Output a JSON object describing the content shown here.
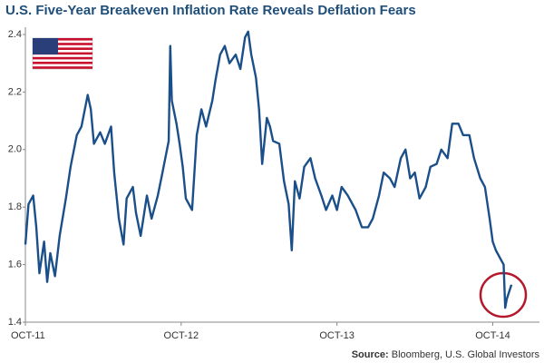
{
  "chart_data": {
    "type": "line",
    "title": "U.S. Five-Year Breakeven Inflation Rate Reveals Deflation Fears",
    "source_label": "Source:",
    "source": "Bloomberg, U.S. Global Investors",
    "x": [
      2011.75,
      2011.77,
      2011.8,
      2011.82,
      2011.84,
      2011.87,
      2011.89,
      2011.91,
      2011.94,
      2011.97,
      2012.01,
      2012.04,
      2012.08,
      2012.11,
      2012.15,
      2012.17,
      2012.19,
      2012.23,
      2012.26,
      2012.3,
      2012.32,
      2012.35,
      2012.38,
      2012.4,
      2012.44,
      2012.46,
      2012.49,
      2012.53,
      2012.56,
      2012.6,
      2012.63,
      2012.67,
      2012.68,
      2012.69,
      2012.72,
      2012.74,
      2012.76,
      2012.78,
      2012.82,
      2012.85,
      2012.88,
      2012.91,
      2012.95,
      2012.97,
      2013.0,
      2013.03,
      2013.06,
      2013.1,
      2013.13,
      2013.16,
      2013.18,
      2013.2,
      2013.23,
      2013.25,
      2013.27,
      2013.3,
      2013.32,
      2013.34,
      2013.38,
      2013.41,
      2013.44,
      2013.46,
      2013.48,
      2013.51,
      2013.54,
      2013.58,
      2013.61,
      2013.65,
      2013.68,
      2013.72,
      2013.75,
      2013.78,
      2013.82,
      2013.87,
      2013.91,
      2013.95,
      2013.98,
      2014.02,
      2014.05,
      2014.09,
      2014.12,
      2014.16,
      2014.19,
      2014.22,
      2014.25,
      2014.28,
      2014.32,
      2014.35,
      2014.39,
      2014.42,
      2014.46,
      2014.49,
      2014.53,
      2014.56,
      2014.6,
      2014.63,
      2014.67,
      2014.7,
      2014.73,
      2014.75,
      2014.77,
      2014.8,
      2014.82,
      2014.83,
      2014.84,
      2014.87
    ],
    "series": [
      {
        "color": "#1b4f8a",
        "values": [
          1.67,
          1.81,
          1.84,
          1.73,
          1.57,
          1.68,
          1.54,
          1.64,
          1.56,
          1.7,
          1.83,
          1.94,
          2.05,
          2.08,
          2.19,
          2.14,
          2.02,
          2.06,
          2.02,
          2.08,
          1.92,
          1.76,
          1.67,
          1.83,
          1.87,
          1.78,
          1.7,
          1.84,
          1.76,
          1.84,
          1.92,
          2.03,
          2.36,
          2.17,
          2.09,
          2.02,
          1.94,
          1.83,
          1.79,
          2.05,
          2.14,
          2.08,
          2.17,
          2.24,
          2.33,
          2.36,
          2.3,
          2.33,
          2.28,
          2.39,
          2.41,
          2.33,
          2.25,
          2.14,
          1.95,
          2.11,
          2.08,
          2.03,
          2.02,
          1.89,
          1.81,
          1.65,
          1.89,
          1.83,
          1.94,
          1.97,
          1.9,
          1.84,
          1.79,
          1.84,
          1.79,
          1.87,
          1.84,
          1.79,
          1.73,
          1.73,
          1.76,
          1.84,
          1.92,
          1.9,
          1.87,
          1.97,
          2.0,
          1.9,
          1.92,
          1.83,
          1.87,
          1.94,
          1.95,
          2.0,
          1.97,
          2.09,
          2.09,
          2.05,
          2.05,
          1.97,
          1.9,
          1.87,
          1.76,
          1.68,
          1.65,
          1.62,
          1.6,
          1.45,
          1.48,
          1.53
        ]
      }
    ],
    "xlim": [
      2011.75,
      2015.05
    ],
    "xticks": [
      {
        "value": 2011.75,
        "label": "OCT-11"
      },
      {
        "value": 2012.75,
        "label": "OCT-12"
      },
      {
        "value": 2013.75,
        "label": "OCT-13"
      },
      {
        "value": 2014.75,
        "label": "OCT-14"
      }
    ],
    "ylim": [
      1.4,
      2.4
    ],
    "yticks": [
      1.4,
      1.6,
      1.8,
      {
        "value": 2,
        "label": "2.0"
      },
      2.2,
      2.4
    ],
    "grid": false
  }
}
